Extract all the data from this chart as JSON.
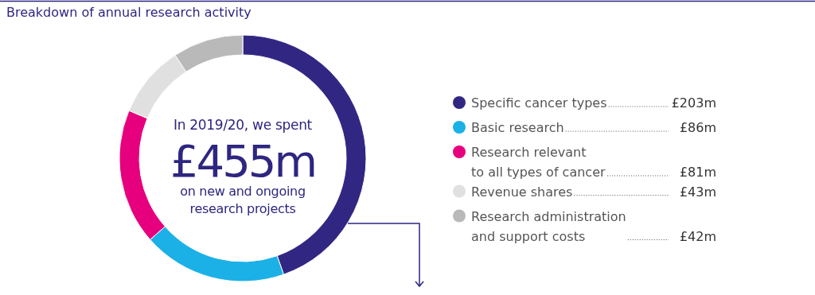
{
  "chart_data": {
    "type": "donut",
    "title": "Breakdown of annual research activity",
    "categories": [
      "Specific cancer types",
      "Basic research",
      "Research relevant\nto all types of cancer",
      "Revenue shares",
      "Research administration\nand support costs"
    ],
    "values": [
      203,
      86,
      81,
      43,
      42
    ],
    "colors": [
      "#312783",
      "#1bb1e7",
      "#e6007e",
      "#e0e0e0",
      "#b9b9b9"
    ],
    "value_labels": [
      "£203m",
      "£86m",
      "£81m",
      "£43m",
      "£42m"
    ],
    "legend": "right",
    "annotations": [
      "In 2019/20, we spent",
      "£455m",
      "on new and ongoing research projects"
    ]
  }
}
